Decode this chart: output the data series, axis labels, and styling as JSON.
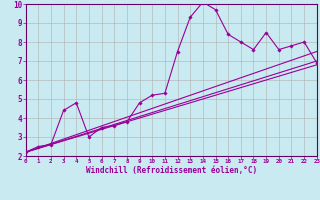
{
  "xlabel": "Windchill (Refroidissement éolien,°C)",
  "xlim": [
    0,
    23
  ],
  "ylim": [
    2,
    10
  ],
  "yticks": [
    2,
    3,
    4,
    5,
    6,
    7,
    8,
    9,
    10
  ],
  "xticks": [
    0,
    1,
    2,
    3,
    4,
    5,
    6,
    7,
    8,
    9,
    10,
    11,
    12,
    13,
    14,
    15,
    16,
    17,
    18,
    19,
    20,
    21,
    22,
    23
  ],
  "background_color": "#c8eaf0",
  "grid_color": "#b0b0b0",
  "line_color": "#990099",
  "spine_color": "#660066",
  "main_line": {
    "x": [
      0,
      1,
      2,
      3,
      4,
      5,
      6,
      7,
      8,
      9,
      10,
      11,
      12,
      13,
      14,
      15,
      16,
      17,
      18,
      19,
      20,
      21,
      22,
      23
    ],
    "y": [
      2.2,
      2.5,
      2.6,
      4.4,
      4.8,
      3.0,
      3.5,
      3.6,
      3.8,
      4.8,
      5.2,
      5.3,
      7.5,
      9.3,
      10.1,
      9.7,
      8.4,
      8.0,
      7.6,
      8.5,
      7.6,
      7.8,
      8.0,
      6.9
    ]
  },
  "trend_lines": [
    {
      "x": [
        0,
        23
      ],
      "y": [
        2.2,
        7.0
      ]
    },
    {
      "x": [
        0,
        23
      ],
      "y": [
        2.2,
        7.5
      ]
    },
    {
      "x": [
        0,
        23
      ],
      "y": [
        2.2,
        6.8
      ]
    }
  ]
}
